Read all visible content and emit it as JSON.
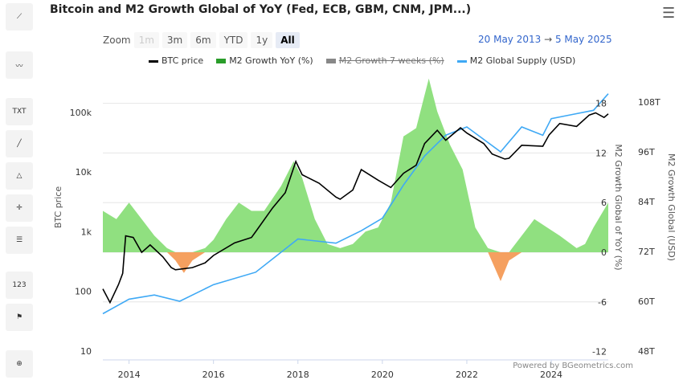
{
  "toolbar": {
    "icons": [
      "indicator-icon",
      "line-chart-icon",
      "text-annotation-icon",
      "line-draw-icon",
      "fibonacci-icon",
      "crosshair-icon",
      "measure-icon",
      "label-icon",
      "flag-icon",
      "zoom-icon"
    ],
    "txt": "TXT",
    "num": "123"
  },
  "title": "Bitcoin and M2 Growth Global of YoY (Fed, ECB, GBM, CNM, JPM...)",
  "zoom": {
    "label": "Zoom",
    "buttons": [
      "1m",
      "3m",
      "6m",
      "YTD",
      "1y",
      "All"
    ],
    "active": "All",
    "disabled": "1m"
  },
  "range": {
    "from": "20 May 2013",
    "arrow": "→",
    "to": "5 May 2025"
  },
  "credit": "Powered by BGeometrics.com",
  "colors": {
    "btc": "#000000",
    "m2yoy_pos": "#90e080",
    "m2yoy_neg": "#f5a060",
    "m2supply": "#3fa9f5",
    "m2_7w": "#777777"
  },
  "chart_data": {
    "type": "line+area",
    "title": "Bitcoin and M2 Growth Global of YoY (Fed, ECB, GBM, CNM, JPM...)",
    "legend": [
      "BTC price",
      "M2 Growth YoY (%)",
      "M2 Growth 7 weeks (%)",
      "M2 Global Supply (USD)"
    ],
    "legend_placement": "top",
    "hidden_series": [
      "M2 Growth 7 weeks (%)"
    ],
    "x_ticks": [
      "2014",
      "2016",
      "2018",
      "2020",
      "2022",
      "2024"
    ],
    "xlim": [
      2013.38,
      2025.35
    ],
    "y_left": {
      "label": "BTC price",
      "scale": "log",
      "ticks": [
        "10",
        "100",
        "1k",
        "10k",
        "100k"
      ],
      "range": [
        10,
        300000
      ]
    },
    "y_right1": {
      "label": "M2 Growth Global of YoY (%)",
      "ticks": [
        "-12",
        "-6",
        "0",
        "6",
        "12",
        "18"
      ],
      "range": [
        -12,
        18
      ]
    },
    "y_right2": {
      "label": "M2 Growth Global (USD)",
      "ticks": [
        "48T",
        "60T",
        "72T",
        "84T",
        "96T",
        "108T"
      ],
      "range": [
        48,
        108
      ]
    },
    "series": [
      {
        "name": "BTC price",
        "axis": "left",
        "points": [
          [
            2013.38,
            110
          ],
          [
            2013.55,
            65
          ],
          [
            2013.75,
            130
          ],
          [
            2013.85,
            200
          ],
          [
            2013.92,
            850
          ],
          [
            2014.1,
            800
          ],
          [
            2014.3,
            450
          ],
          [
            2014.5,
            600
          ],
          [
            2014.8,
            380
          ],
          [
            2015.0,
            250
          ],
          [
            2015.1,
            230
          ],
          [
            2015.5,
            250
          ],
          [
            2015.8,
            300
          ],
          [
            2016.0,
            400
          ],
          [
            2016.5,
            650
          ],
          [
            2016.9,
            800
          ],
          [
            2017.0,
            1000
          ],
          [
            2017.4,
            2500
          ],
          [
            2017.7,
            4500
          ],
          [
            2017.95,
            15000
          ],
          [
            2018.1,
            9000
          ],
          [
            2018.5,
            6500
          ],
          [
            2018.9,
            3800
          ],
          [
            2019.0,
            3500
          ],
          [
            2019.3,
            5000
          ],
          [
            2019.5,
            11000
          ],
          [
            2019.9,
            7300
          ],
          [
            2020.2,
            5500
          ],
          [
            2020.5,
            9500
          ],
          [
            2020.8,
            13000
          ],
          [
            2021.0,
            30000
          ],
          [
            2021.3,
            50000
          ],
          [
            2021.5,
            34000
          ],
          [
            2021.85,
            55000
          ],
          [
            2022.0,
            45000
          ],
          [
            2022.4,
            30000
          ],
          [
            2022.6,
            20000
          ],
          [
            2022.9,
            16500
          ],
          [
            2023.0,
            17000
          ],
          [
            2023.3,
            28000
          ],
          [
            2023.8,
            27000
          ],
          [
            2023.95,
            42000
          ],
          [
            2024.2,
            65000
          ],
          [
            2024.6,
            58000
          ],
          [
            2024.9,
            90000
          ],
          [
            2025.05,
            98000
          ],
          [
            2025.25,
            82000
          ],
          [
            2025.35,
            94000
          ]
        ]
      },
      {
        "name": "M2 Growth YoY (%)",
        "axis": "right1",
        "points": [
          [
            2013.38,
            5
          ],
          [
            2013.7,
            4
          ],
          [
            2014.0,
            6
          ],
          [
            2014.3,
            4
          ],
          [
            2014.6,
            2
          ],
          [
            2014.9,
            0.5
          ],
          [
            2015.1,
            -1
          ],
          [
            2015.3,
            -2.5
          ],
          [
            2015.5,
            -1
          ],
          [
            2015.8,
            0.5
          ],
          [
            2016.0,
            1.5
          ],
          [
            2016.3,
            4
          ],
          [
            2016.6,
            6
          ],
          [
            2016.9,
            5
          ],
          [
            2017.2,
            5
          ],
          [
            2017.6,
            8
          ],
          [
            2017.9,
            11
          ],
          [
            2018.1,
            9
          ],
          [
            2018.4,
            4
          ],
          [
            2018.7,
            1
          ],
          [
            2019.0,
            0.5
          ],
          [
            2019.3,
            1
          ],
          [
            2019.6,
            2.5
          ],
          [
            2019.9,
            3
          ],
          [
            2020.2,
            6
          ],
          [
            2020.5,
            14
          ],
          [
            2020.8,
            15
          ],
          [
            2021.1,
            21
          ],
          [
            2021.3,
            17
          ],
          [
            2021.6,
            13
          ],
          [
            2021.9,
            10
          ],
          [
            2022.2,
            3
          ],
          [
            2022.5,
            0.5
          ],
          [
            2022.8,
            -3.5
          ],
          [
            2023.0,
            -1
          ],
          [
            2023.3,
            2
          ],
          [
            2023.6,
            4
          ],
          [
            2023.9,
            3
          ],
          [
            2024.2,
            2
          ],
          [
            2024.6,
            0.5
          ],
          [
            2024.8,
            1
          ],
          [
            2025.0,
            3
          ],
          [
            2025.35,
            6
          ]
        ]
      },
      {
        "name": "M2 Global Supply (USD)",
        "axis": "right2",
        "points": [
          [
            2013.38,
            57
          ],
          [
            2014.0,
            60.5
          ],
          [
            2014.6,
            61.5
          ],
          [
            2015.2,
            60
          ],
          [
            2015.6,
            62
          ],
          [
            2016.0,
            64
          ],
          [
            2017.0,
            67
          ],
          [
            2018.0,
            75
          ],
          [
            2018.9,
            74
          ],
          [
            2019.5,
            77
          ],
          [
            2020.0,
            80
          ],
          [
            2020.5,
            88
          ],
          [
            2021.0,
            95
          ],
          [
            2021.5,
            100
          ],
          [
            2022.0,
            102
          ],
          [
            2022.8,
            96
          ],
          [
            2023.3,
            102
          ],
          [
            2023.8,
            100
          ],
          [
            2024.0,
            104
          ],
          [
            2024.5,
            105
          ],
          [
            2025.0,
            106
          ],
          [
            2025.35,
            110
          ]
        ]
      }
    ]
  }
}
